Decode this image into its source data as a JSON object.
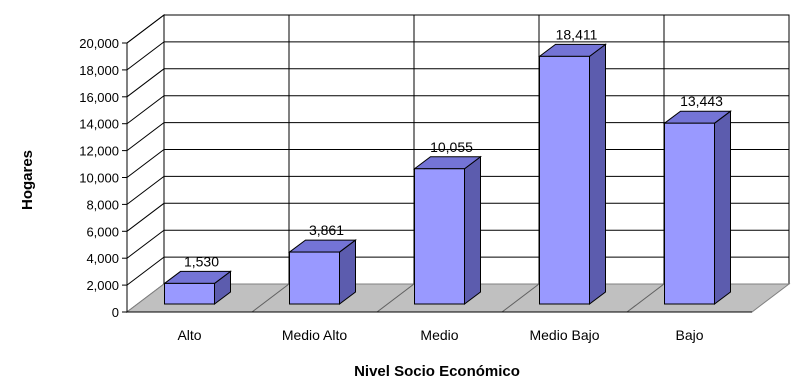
{
  "chart_data": {
    "type": "bar",
    "title": "",
    "xlabel": "Nivel Socio Económico",
    "ylabel": "Hogares",
    "categories": [
      "Alto",
      "Medio Alto",
      "Medio",
      "Medio Bajo",
      "Bajo"
    ],
    "values": [
      1530,
      3861,
      10055,
      18411,
      13443
    ],
    "value_labels": [
      "1,530",
      "3,861",
      "10,055",
      "18,411",
      "13,443"
    ],
    "ylim": [
      0,
      20000
    ],
    "yticks": [
      "0",
      "2,000",
      "4,000",
      "6,000",
      "8,000",
      "10,000",
      "12,000",
      "14,000",
      "16,000",
      "18,000",
      "20,000"
    ],
    "grid": true,
    "three_d": true,
    "colors": {
      "bar_front": "#9999ff",
      "bar_side": "#5c5cae",
      "bar_top": "#7474d6",
      "floor": "#c0c0c0",
      "wall": "#ffffff",
      "grid": "#000000"
    }
  }
}
